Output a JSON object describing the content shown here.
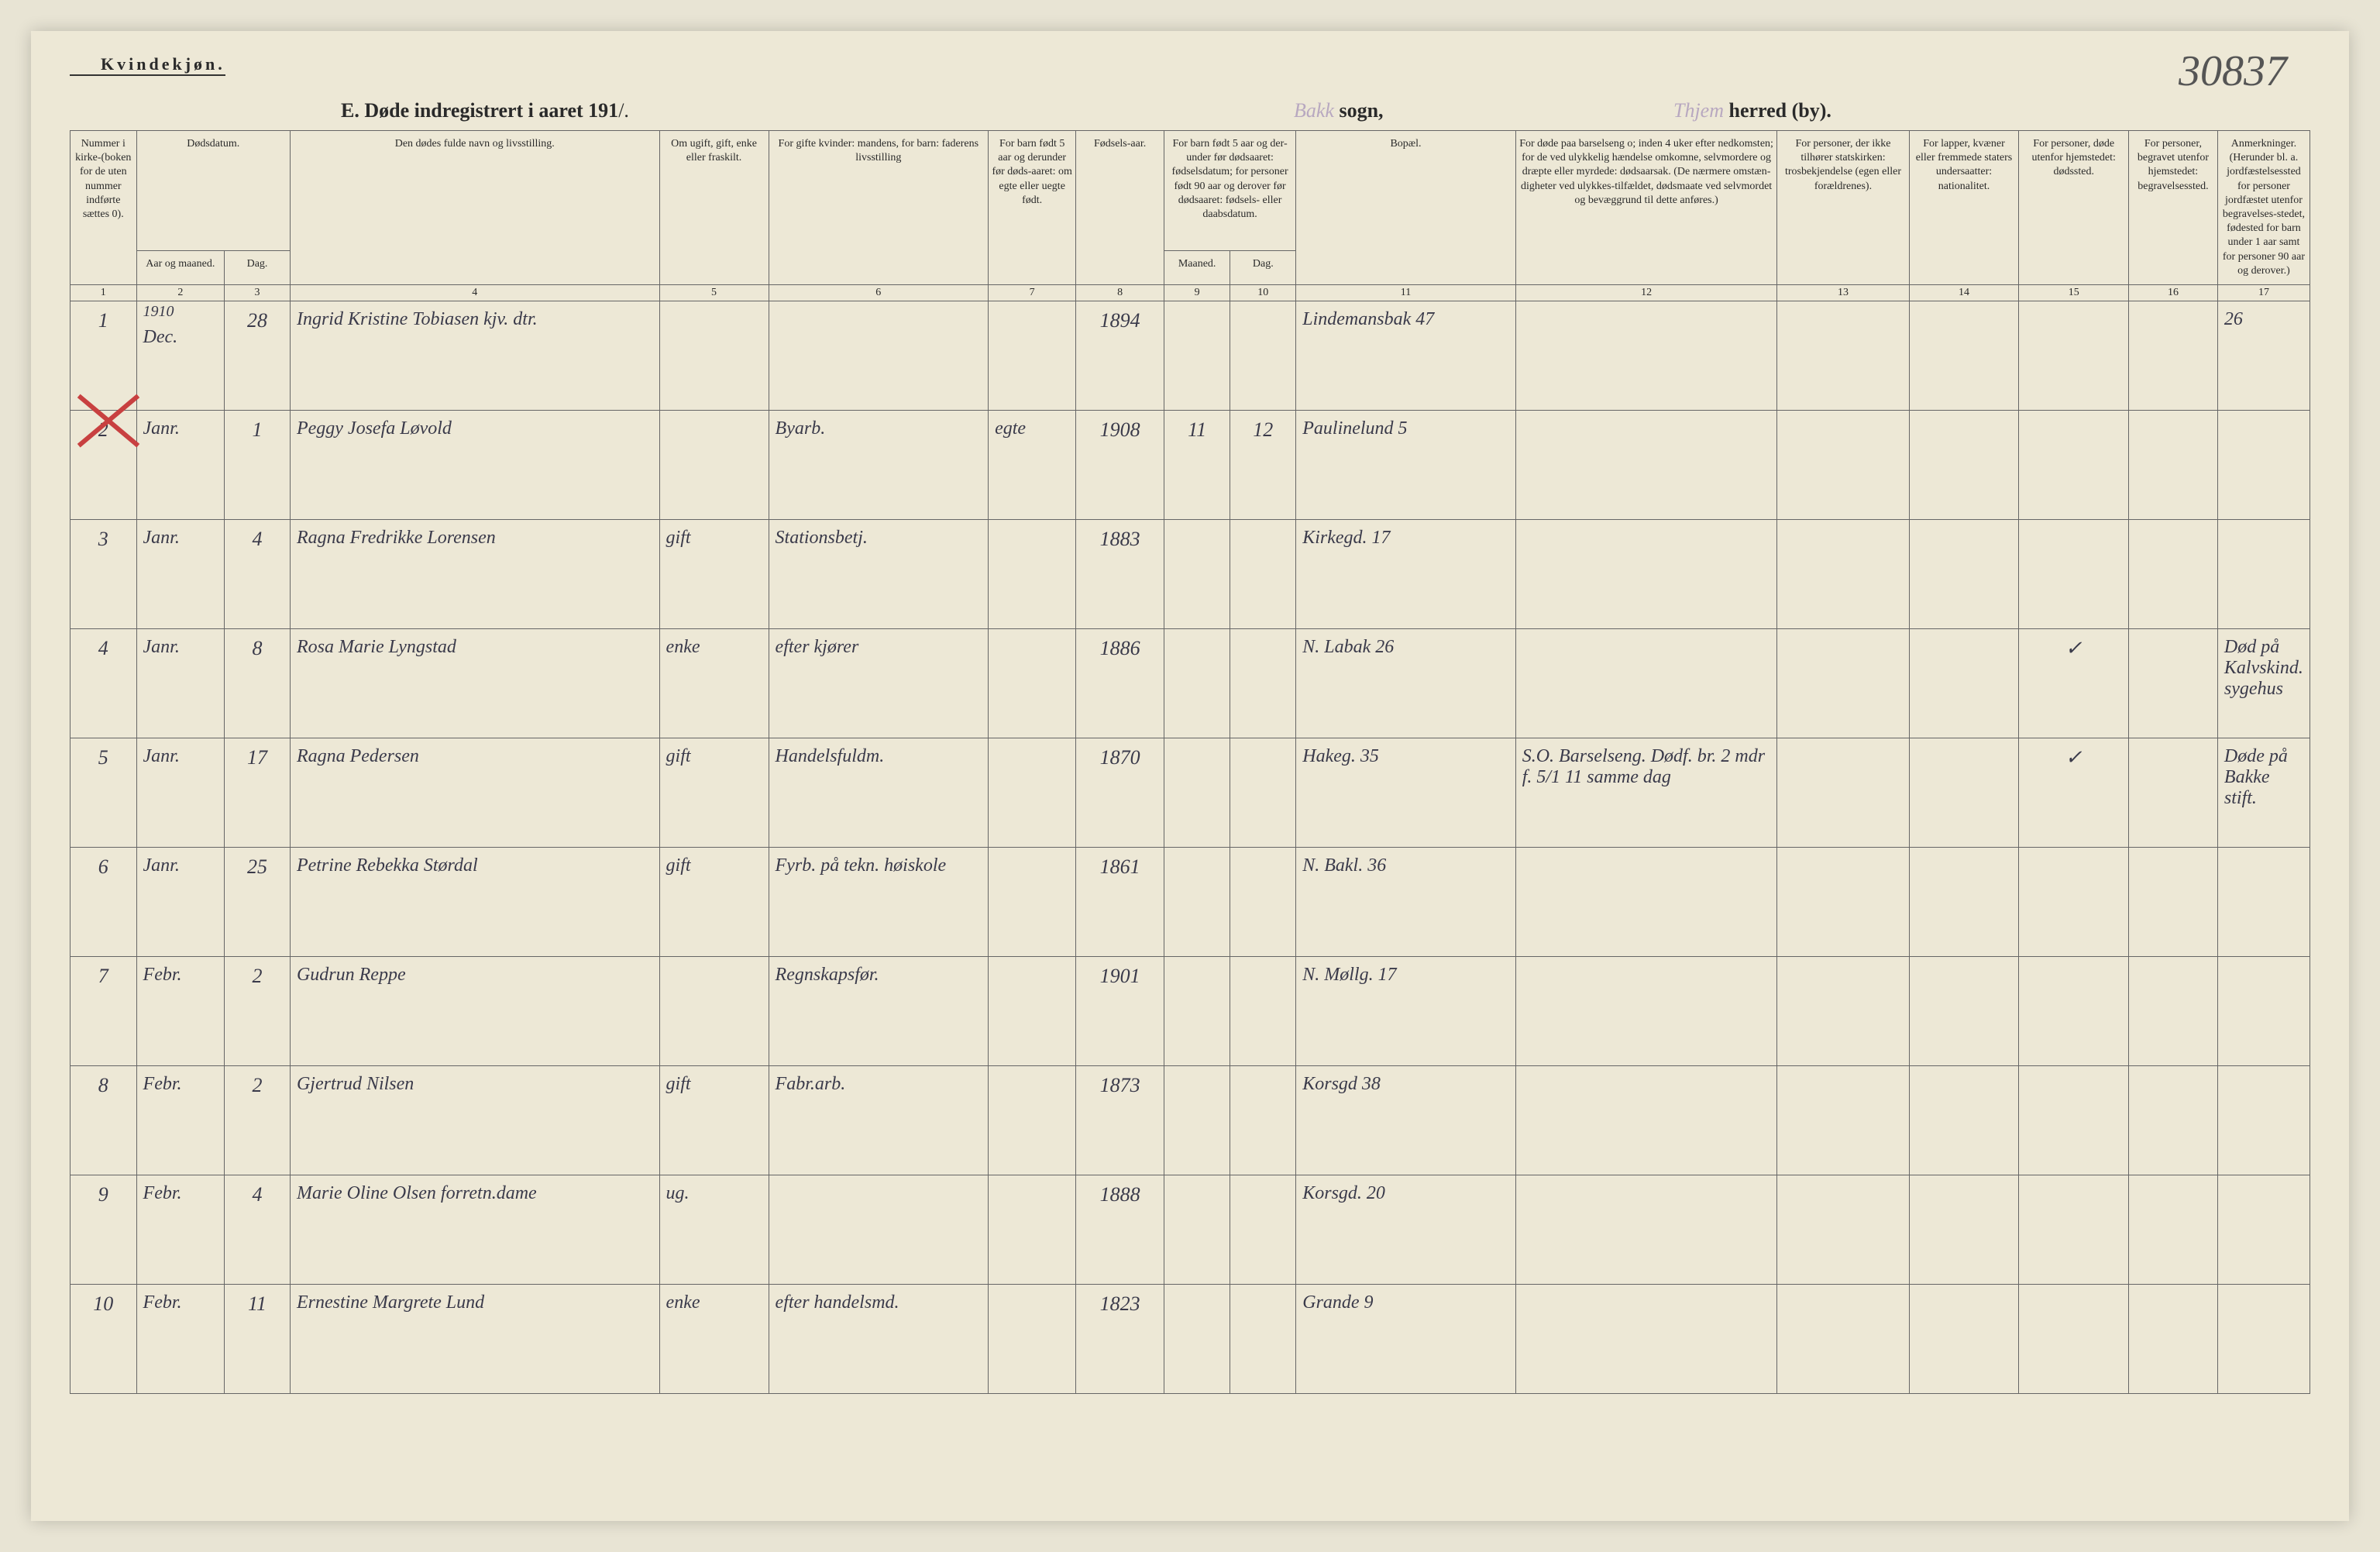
{
  "header": {
    "gender_label": "Kvindekjøn.",
    "title_prefix": "E.  Døde indregistrert i aaret 191",
    "title_year_suffix": "/.",
    "sogn_faded": "Bakk",
    "sogn_label": "sogn,",
    "herred_faded": "Thjem",
    "herred_label": "herred (by).",
    "page_number": "30837"
  },
  "columns": {
    "col1": "Nummer i kirke-(boken for de uten nummer indførte sættes 0).",
    "col2_group": "Dødsdatum.",
    "col2a": "Aar og maaned.",
    "col2b": "Dag.",
    "col4": "Den dødes fulde navn og livsstilling.",
    "col5": "Om ugift, gift, enke eller fraskilt.",
    "col6": "For gifte kvinder:\nmandens,\nfor barn:\nfaderens livsstilling",
    "col7": "For barn født 5 aar og derunder før døds-aaret: om egte eller uegte født.",
    "col8": "Fødsels-aar.",
    "col9_group": "For barn født 5 aar og der-under før dødsaaret: fødselsdatum; for personer født 90 aar og derover før dødsaaret: fødsels- eller daabsdatum.",
    "col9a": "Maaned.",
    "col9b": "Dag.",
    "col11": "Bopæl.",
    "col12": "For døde paa barselseng o; inden 4 uker efter nedkomsten; for de ved ulykkelig hændelse omkomne, selvmordere og dræpte eller myrdede: dødsaarsak. (De nærmere omstæn-digheter ved ulykkes-tilfældet, dødsmaate ved selvmordet og bevæggrund til dette anføres.)",
    "col13": "For personer, der ikke tilhører statskirken: trosbekjendelse (egen eller forældrenes).",
    "col14": "For lapper, kvæner eller fremmede staters undersaatter: nationalitet.",
    "col15": "For personer, døde utenfor hjemstedet: dødssted.",
    "col16": "For personer, begravet utenfor hjemstedet: begravelsessted.",
    "col17": "Anmerkninger. (Herunder bl. a. jordfæstelsessted for personer jordfæstet utenfor begravelses-stedet, fødested for barn under 1 aar samt for personer 90 aar og derover.)"
  },
  "col_numbers": [
    "1",
    "2",
    "3",
    "4",
    "5",
    "6",
    "7",
    "8",
    "9",
    "10",
    "11",
    "12",
    "13",
    "14",
    "15",
    "16",
    "17"
  ],
  "rows": [
    {
      "num": "1",
      "year_annot": "1910",
      "maaned": "Dec.",
      "dag": "28",
      "navn": "Ingrid Kristine Tobiasen kjv. dtr.",
      "stand": "",
      "mandens": "",
      "egte": "",
      "fodselsaar": "1894",
      "m": "",
      "d": "",
      "bopael": "Lindemansbak 47",
      "aarsak": "",
      "tros": "",
      "nat": "",
      "dodssted": "",
      "begrav": "",
      "anm": "26"
    },
    {
      "num": "2",
      "maaned": "Janr.",
      "dag": "1",
      "navn": "Peggy Josefa Løvold",
      "stand": "",
      "mandens": "Byarb.",
      "egte": "egte",
      "fodselsaar": "1908",
      "m": "11",
      "d": "12",
      "bopael": "Paulinelund 5",
      "aarsak": "",
      "tros": "",
      "nat": "",
      "dodssted": "",
      "begrav": "",
      "anm": ""
    },
    {
      "num": "3",
      "maaned": "Janr.",
      "dag": "4",
      "navn": "Ragna Fredrikke Lorensen",
      "stand": "gift",
      "mandens": "Stationsbetj.",
      "egte": "",
      "fodselsaar": "1883",
      "m": "",
      "d": "",
      "bopael": "Kirkegd. 17",
      "aarsak": "",
      "tros": "",
      "nat": "",
      "dodssted": "",
      "begrav": "",
      "anm": ""
    },
    {
      "num": "4",
      "maaned": "Janr.",
      "dag": "8",
      "navn": "Rosa Marie Lyngstad",
      "stand": "enke",
      "mandens": "efter kjører",
      "egte": "",
      "fodselsaar": "1886",
      "m": "",
      "d": "",
      "bopael": "N. Labak 26",
      "aarsak": "",
      "tros": "",
      "nat": "",
      "dodssted": "✓",
      "begrav": "",
      "anm": "Død på Kalvskind. sygehus"
    },
    {
      "num": "5",
      "maaned": "Janr.",
      "dag": "17",
      "navn": "Ragna Pedersen",
      "stand": "gift",
      "mandens": "Handelsfuldm.",
      "egte": "",
      "fodselsaar": "1870",
      "m": "",
      "d": "",
      "bopael": "Hakeg. 35",
      "aarsak": "S.O. Barselseng. Dødf. br. 2 mdr f. 5/1 11 samme dag",
      "tros": "",
      "nat": "",
      "dodssted": "✓",
      "begrav": "",
      "anm": "Døde på Bakke stift."
    },
    {
      "num": "6",
      "maaned": "Janr.",
      "dag": "25",
      "navn": "Petrine Rebekka Størdal",
      "stand": "gift",
      "mandens": "Fyrb. på tekn. høiskole",
      "egte": "",
      "fodselsaar": "1861",
      "m": "",
      "d": "",
      "bopael": "N. Bakl. 36",
      "aarsak": "",
      "tros": "",
      "nat": "",
      "dodssted": "",
      "begrav": "",
      "anm": ""
    },
    {
      "num": "7",
      "maaned": "Febr.",
      "dag": "2",
      "navn": "Gudrun Reppe",
      "stand": "",
      "mandens": "Regnskapsfør.",
      "egte": "",
      "fodselsaar": "1901",
      "m": "",
      "d": "",
      "bopael": "N. Møllg. 17",
      "aarsak": "",
      "tros": "",
      "nat": "",
      "dodssted": "",
      "begrav": "",
      "anm": ""
    },
    {
      "num": "8",
      "maaned": "Febr.",
      "dag": "2",
      "navn": "Gjertrud Nilsen",
      "stand": "gift",
      "mandens": "Fabr.arb.",
      "egte": "",
      "fodselsaar": "1873",
      "m": "",
      "d": "",
      "bopael": "Korsgd 38",
      "aarsak": "",
      "tros": "",
      "nat": "",
      "dodssted": "",
      "begrav": "",
      "anm": ""
    },
    {
      "num": "9",
      "maaned": "Febr.",
      "dag": "4",
      "navn": "Marie Oline Olsen forretn.dame",
      "stand": "ug.",
      "mandens": "",
      "egte": "",
      "fodselsaar": "1888",
      "m": "",
      "d": "",
      "bopael": "Korsgd. 20",
      "aarsak": "",
      "tros": "",
      "nat": "",
      "dodssted": "",
      "begrav": "",
      "anm": ""
    },
    {
      "num": "10",
      "maaned": "Febr.",
      "dag": "11",
      "navn": "Ernestine Margrete Lund",
      "stand": "enke",
      "mandens": "efter handelsmd.",
      "egte": "",
      "fodselsaar": "1823",
      "m": "",
      "d": "",
      "bopael": "Grande 9",
      "aarsak": "",
      "tros": "",
      "nat": "",
      "dodssted": "",
      "begrav": "",
      "anm": ""
    }
  ],
  "styling": {
    "page_bg": "#ede8d6",
    "border_color": "#666666",
    "ink_color": "#3a3a4a",
    "red_mark_color": "#c84040",
    "faded_ink": "#8a6aa8",
    "col_widths_pct": [
      3,
      4,
      3,
      17,
      5,
      10,
      4,
      4,
      3,
      3,
      10,
      12,
      6,
      5,
      5,
      4,
      12
    ]
  }
}
